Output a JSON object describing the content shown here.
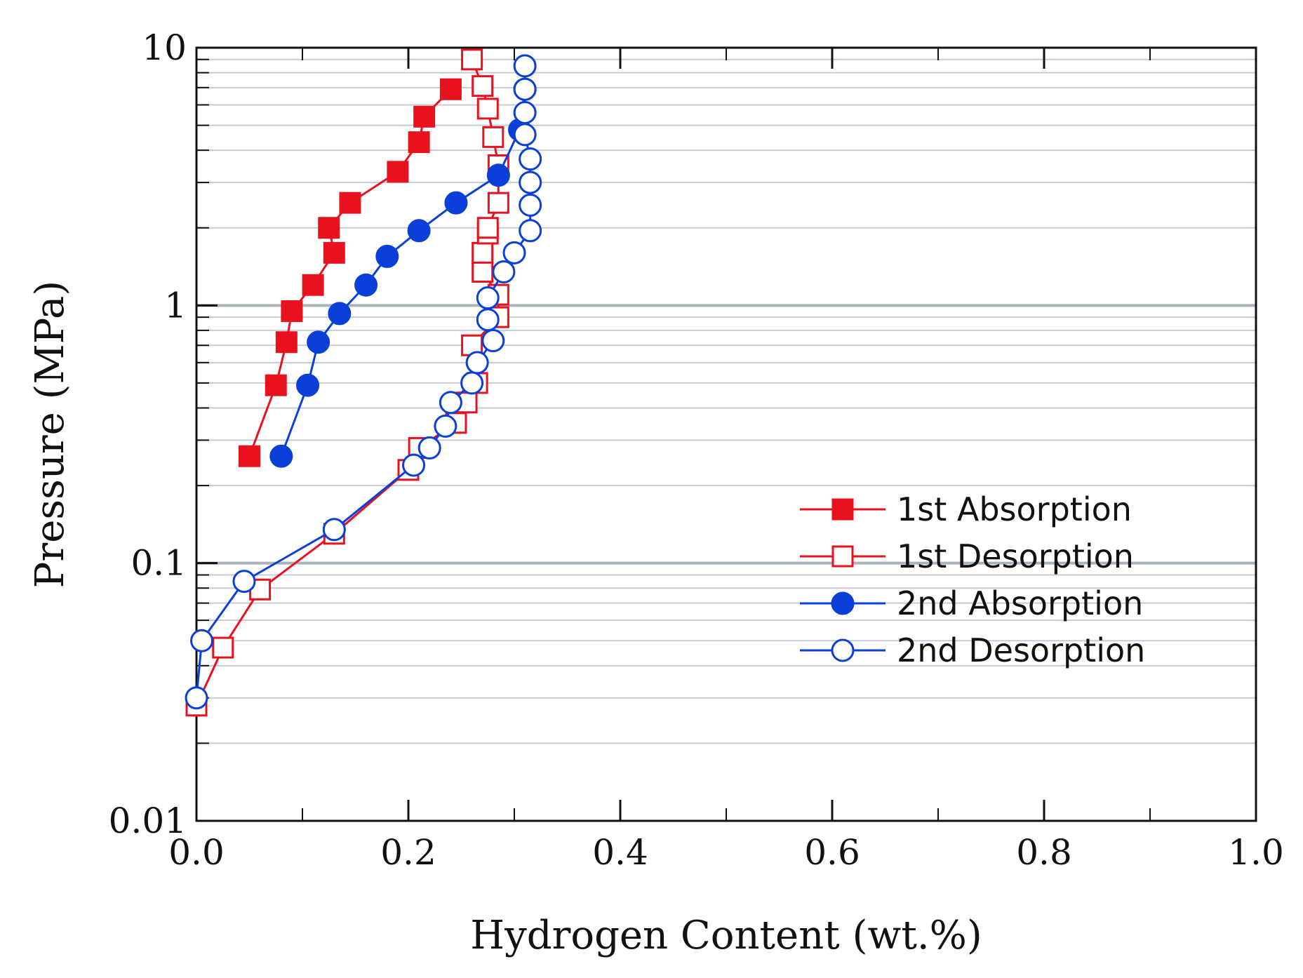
{
  "chart_data": {
    "type": "scatter",
    "title": "",
    "xlabel": "Hydrogen Content (wt.%)",
    "ylabel": "Pressure (MPa)",
    "xlim": [
      0.0,
      1.0
    ],
    "ylim": [
      0.01,
      10
    ],
    "yscale": "log",
    "grid": "horizontal",
    "legend_position": "center-right",
    "x_tick_labels": [
      "0.0",
      "0.2",
      "0.4",
      "0.6",
      "0.8",
      "1.0"
    ],
    "x_tick_values": [
      0.0,
      0.2,
      0.4,
      0.6,
      0.8,
      1.0
    ],
    "y_tick_labels": [
      "0.01",
      "0.1",
      "1",
      "10"
    ],
    "y_tick_values": [
      0.01,
      0.1,
      1,
      10
    ],
    "series": [
      {
        "name": "1st Absorption",
        "color": "#e8121e",
        "marker": "square",
        "filled": true,
        "x": [
          0.05,
          0.075,
          0.085,
          0.09,
          0.11,
          0.13,
          0.125,
          0.145,
          0.19,
          0.21,
          0.215,
          0.24
        ],
        "y": [
          0.26,
          0.49,
          0.72,
          0.95,
          1.2,
          1.6,
          2.0,
          2.5,
          3.3,
          4.3,
          5.4,
          6.9
        ]
      },
      {
        "name": "1st Desorption",
        "color": "#e8121e",
        "marker": "square",
        "filled": false,
        "x": [
          0.0,
          0.025,
          0.06,
          0.13,
          0.2,
          0.21,
          0.245,
          0.255,
          0.265,
          0.26,
          0.285,
          0.285,
          0.27,
          0.27,
          0.275,
          0.275,
          0.285,
          0.285,
          0.28,
          0.275,
          0.27,
          0.26
        ],
        "y": [
          0.028,
          0.047,
          0.079,
          0.13,
          0.23,
          0.28,
          0.35,
          0.42,
          0.5,
          0.7,
          0.9,
          1.1,
          1.35,
          1.6,
          1.9,
          2.0,
          2.5,
          3.5,
          4.5,
          5.8,
          7.1,
          9.0
        ]
      },
      {
        "name": "2nd Absorption",
        "color": "#0a3fd8",
        "marker": "circle",
        "filled": true,
        "x": [
          0.08,
          0.105,
          0.115,
          0.135,
          0.16,
          0.18,
          0.21,
          0.245,
          0.285,
          0.305,
          0.31
        ],
        "y": [
          0.26,
          0.49,
          0.72,
          0.93,
          1.2,
          1.55,
          1.95,
          2.5,
          3.2,
          4.8,
          6.9
        ]
      },
      {
        "name": "2nd Desorption",
        "color": "#0a3fd8",
        "marker": "circle",
        "filled": false,
        "x": [
          0.0,
          0.005,
          0.045,
          0.13,
          0.205,
          0.22,
          0.235,
          0.24,
          0.26,
          0.265,
          0.28,
          0.275,
          0.275,
          0.29,
          0.3,
          0.315,
          0.315,
          0.315,
          0.315,
          0.31,
          0.31,
          0.31,
          0.31
        ],
        "y": [
          0.03,
          0.05,
          0.085,
          0.135,
          0.24,
          0.28,
          0.34,
          0.42,
          0.5,
          0.6,
          0.73,
          0.88,
          1.07,
          1.35,
          1.6,
          1.95,
          2.45,
          3.0,
          3.7,
          4.6,
          5.6,
          6.9,
          8.5
        ]
      }
    ]
  }
}
